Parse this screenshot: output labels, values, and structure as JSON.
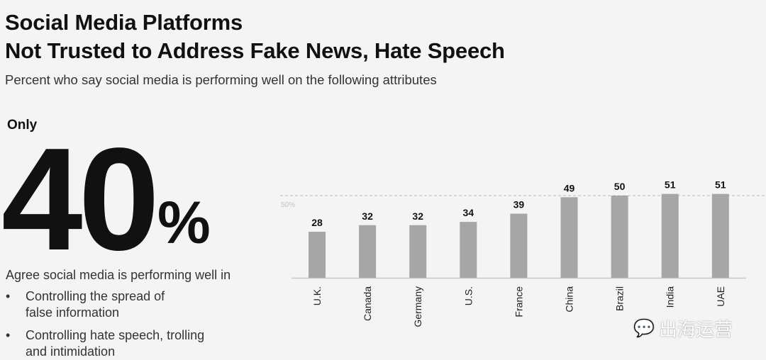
{
  "header": {
    "title_line1": "Social Media Platforms",
    "title_line2": "Not Trusted to Address Fake News, Hate Speech",
    "subtitle": "Percent who say social media is performing well on the following attributes"
  },
  "callout": {
    "prefix": "Only",
    "number": "40",
    "unit": "%",
    "description": "Agree social media is performing well in",
    "bullets": [
      {
        "marker": "•",
        "line1": "Controlling the spread of",
        "line2": "false information"
      },
      {
        "marker": "•",
        "line1": "Controlling hate speech, trolling",
        "line2": "and intimidation"
      }
    ]
  },
  "watermark": {
    "text": "出海运营"
  },
  "chart_data": {
    "type": "bar",
    "categories": [
      "U.K.",
      "Canada",
      "Germany",
      "U.S.",
      "France",
      "China",
      "Brazil",
      "India",
      "UAE"
    ],
    "values": [
      28,
      32,
      32,
      34,
      39,
      49,
      50,
      51,
      51
    ],
    "reference_line": {
      "value": 50,
      "label": "50%"
    },
    "ylim": [
      0,
      55
    ],
    "bar_color": "#a6a6a6",
    "xlabel": "",
    "ylabel": "",
    "title": ""
  }
}
